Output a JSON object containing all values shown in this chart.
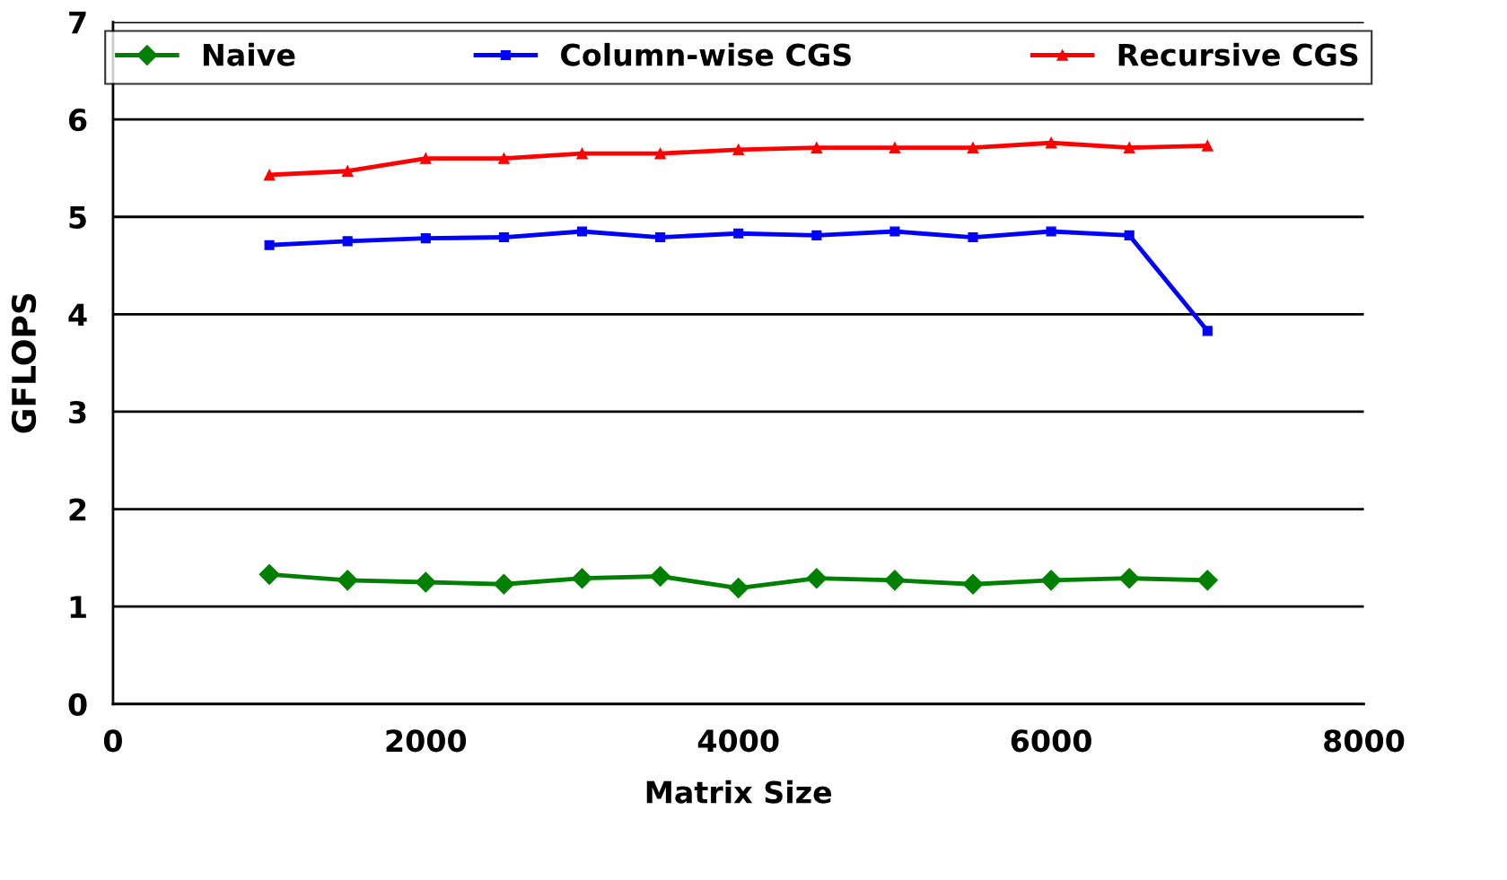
{
  "chart_data": {
    "type": "line",
    "xlabel": "Matrix Size",
    "ylabel": "GFLOPS",
    "x": [
      1000,
      1500,
      2000,
      2500,
      3000,
      3500,
      4000,
      4500,
      5000,
      5500,
      6000,
      6500,
      7000
    ],
    "series": [
      {
        "name": "Naive",
        "color": "#008000",
        "marker": "diamond",
        "values": [
          1.33,
          1.27,
          1.25,
          1.23,
          1.29,
          1.31,
          1.19,
          1.29,
          1.27,
          1.23,
          1.27,
          1.29,
          1.27
        ]
      },
      {
        "name": "Column-wise CGS",
        "color": "#0000ff",
        "marker": "square",
        "values": [
          4.71,
          4.75,
          4.78,
          4.79,
          4.85,
          4.79,
          4.83,
          4.81,
          4.85,
          4.79,
          4.85,
          4.81,
          3.83
        ]
      },
      {
        "name": "Recursive CGS",
        "color": "#ff0000",
        "marker": "triangle",
        "values": [
          5.43,
          5.47,
          5.6,
          5.6,
          5.65,
          5.65,
          5.69,
          5.71,
          5.71,
          5.71,
          5.76,
          5.71,
          5.73
        ]
      }
    ],
    "xlim": [
      0,
      8000
    ],
    "xticks": [
      0,
      2000,
      4000,
      6000,
      8000
    ],
    "ylim": [
      0,
      7
    ],
    "yticks": [
      0,
      1,
      2,
      3,
      4,
      5,
      6,
      7
    ],
    "grid": "y",
    "legend": "top",
    "line_style": "solid"
  }
}
